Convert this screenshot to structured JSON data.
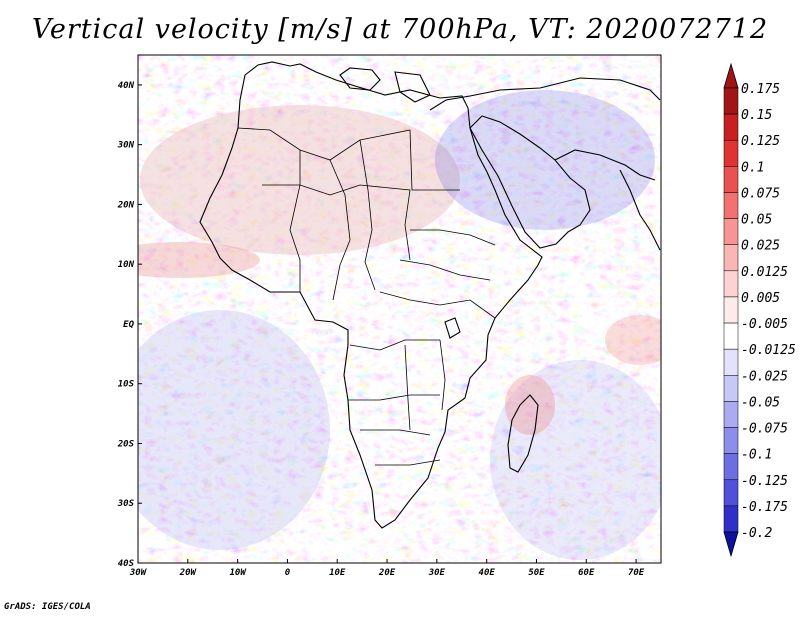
{
  "title": "Vertical velocity [m/s] at 700hPa, VT: 2020072712",
  "footer": "GrADS: IGES/COLA",
  "map": {
    "extent": {
      "lon_min": -30,
      "lon_max": 75,
      "lat_min": -40,
      "lat_max": 45
    },
    "lon_ticks": [
      {
        "value": -30,
        "label": "30W"
      },
      {
        "value": -20,
        "label": "20W"
      },
      {
        "value": -10,
        "label": "10W"
      },
      {
        "value": 0,
        "label": "0"
      },
      {
        "value": 10,
        "label": "10E"
      },
      {
        "value": 20,
        "label": "20E"
      },
      {
        "value": 30,
        "label": "30E"
      },
      {
        "value": 40,
        "label": "40E"
      },
      {
        "value": 50,
        "label": "50E"
      },
      {
        "value": 60,
        "label": "60E"
      },
      {
        "value": 70,
        "label": "70E"
      }
    ],
    "lat_ticks": [
      {
        "value": 40,
        "label": "40N"
      },
      {
        "value": 30,
        "label": "30N"
      },
      {
        "value": 20,
        "label": "20N"
      },
      {
        "value": 10,
        "label": "10N"
      },
      {
        "value": 0,
        "label": "EQ"
      },
      {
        "value": -10,
        "label": "10S"
      },
      {
        "value": -20,
        "label": "20S"
      },
      {
        "value": -30,
        "label": "30S"
      },
      {
        "value": -40,
        "label": "40S"
      }
    ]
  },
  "colorbar": {
    "levels": [
      {
        "label": "0.175",
        "color": "#a01515"
      },
      {
        "label": "0.15",
        "color": "#c82020"
      },
      {
        "label": "0.125",
        "color": "#e03333"
      },
      {
        "label": "0.1",
        "color": "#ea5252"
      },
      {
        "label": "0.075",
        "color": "#f27272"
      },
      {
        "label": "0.05",
        "color": "#f79494"
      },
      {
        "label": "0.025",
        "color": "#fab5b5"
      },
      {
        "label": "0.0125",
        "color": "#fcd2d2"
      },
      {
        "label": "0.005",
        "color": "#fdeaea"
      },
      {
        "label": "-0.005",
        "color": "#ffffff"
      },
      {
        "label": "-0.0125",
        "color": "#e2e2fb"
      },
      {
        "label": "-0.025",
        "color": "#c8c8f6"
      },
      {
        "label": "-0.05",
        "color": "#ababf1"
      },
      {
        "label": "-0.075",
        "color": "#8d8deb"
      },
      {
        "label": "-0.1",
        "color": "#6e6ee3"
      },
      {
        "label": "-0.125",
        "color": "#5050d8"
      },
      {
        "label": "-0.175",
        "color": "#3030c8"
      },
      {
        "label": "-0.2",
        "color": "#1818a8"
      }
    ],
    "top_triangle_color": "#a01515",
    "bottom_triangle_color": "#1010a0"
  }
}
